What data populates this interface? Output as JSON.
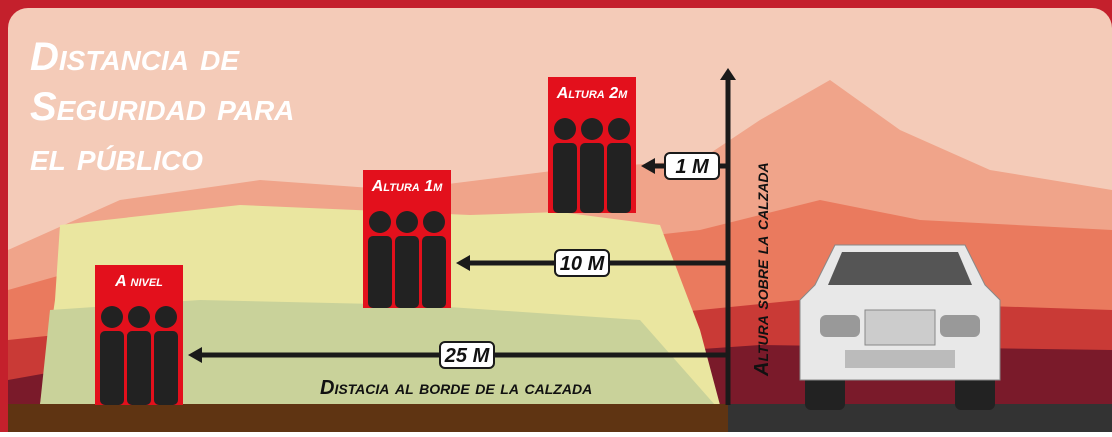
{
  "title": {
    "lines": [
      "Distancia de",
      "Seguridad para",
      "el público"
    ]
  },
  "groups": [
    {
      "label": "A nivel",
      "distance": "25 M"
    },
    {
      "label": "Altura 1m",
      "distance": "10 M"
    },
    {
      "label": "Altura 2m",
      "distance": "1 M"
    }
  ],
  "axes": {
    "horizontal": "Distacia al borde de la calzada",
    "vertical": "Altura sobre la calzada"
  }
}
